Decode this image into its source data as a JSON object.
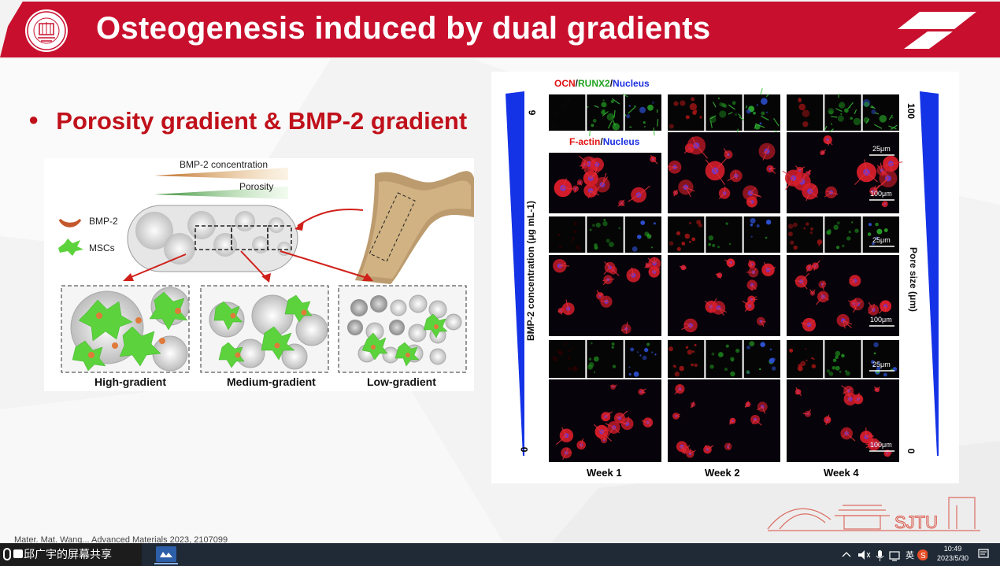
{
  "slide": {
    "title": "Osteogenesis induced by dual gradients",
    "bullet": "Porosity gradient & BMP-2 gradient",
    "reference": "Mater. Mat. Wang... Advanced Materials 2023, 2107099"
  },
  "left_figure": {
    "bmp2_concentration": "BMP-2 concentration",
    "porosity": "Porosity",
    "legend_bmp2": "BMP-2",
    "legend_mscs": "MSCs",
    "captions": [
      "High-gradient",
      "Medium-gradient",
      "Low-gradient"
    ]
  },
  "right_figure": {
    "header_ocn": "OCN",
    "header_runx2": "RUNX2",
    "header_nucleus": "Nucleus",
    "header_sep": "/",
    "factin": "F-actin",
    "factin_nucleus": "Nucleus",
    "left_axis_label": "BMP-2 concentration (μg mL-1)",
    "left_axis_top": "6",
    "left_axis_bottom": "0",
    "right_axis_label": "Pore size (μm)",
    "right_axis_top": "100",
    "right_axis_bottom": "0",
    "scale_small": "25μm",
    "scale_large": "100μm",
    "weeks": [
      "Week 1",
      "Week 2",
      "Week 4"
    ]
  },
  "colors": {
    "title_red": "#c8102e",
    "bullet_red": "#c0111b",
    "gradient_blue": "#1533e6"
  },
  "taskbar": {
    "share_label": "邱广宇的屏幕共享",
    "time": "10:49",
    "date": "2023/5/30",
    "ime": "英"
  },
  "watermark": "SJTU"
}
